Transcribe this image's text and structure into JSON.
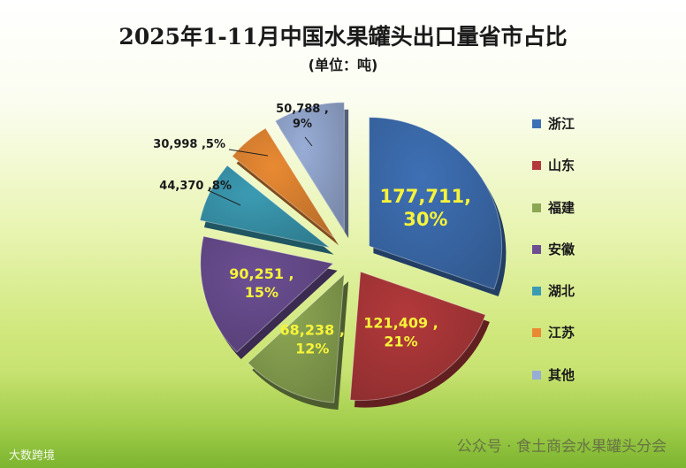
{
  "title": "2025年1-11月中国水果罐头出口量省市占比",
  "unit": "(单位：吨)",
  "footer": "公众号 · 食土商会水果罐头分会",
  "watermark": "大数跨境",
  "chart_data": {
    "type": "pie",
    "title": "2025年1-11月中国水果罐头出口量省市占比",
    "subtitle": "(单位：吨)",
    "legend_position": "right",
    "slices": [
      {
        "name": "浙江",
        "value": 177711,
        "percent": 30,
        "color": "#3e70b5",
        "label_lines": [
          "177,711,",
          "30%"
        ]
      },
      {
        "name": "山东",
        "value": 121409,
        "percent": 21,
        "color": "#b3393b",
        "label_lines": [
          "121,409 ,",
          "21%"
        ]
      },
      {
        "name": "福建",
        "value": 68238,
        "percent": 12,
        "color": "#8ca753",
        "label_lines": [
          "68,238 ,",
          "12%"
        ]
      },
      {
        "name": "安徽",
        "value": 90251,
        "percent": 15,
        "color": "#6c4f93",
        "label_lines": [
          "90,251 ,",
          "15%"
        ]
      },
      {
        "name": "湖北",
        "value": 44370,
        "percent": 8,
        "color": "#3b9bb3",
        "label_lines": [
          "44,370 ,8%"
        ]
      },
      {
        "name": "江苏",
        "value": 30998,
        "percent": 5,
        "color": "#e98a33",
        "label_lines": [
          "30,998 ,5%"
        ]
      },
      {
        "name": "其他",
        "value": 50788,
        "percent": 9,
        "color": "#98add6",
        "label_lines": [
          "50,788 ,",
          "9%"
        ]
      }
    ]
  }
}
